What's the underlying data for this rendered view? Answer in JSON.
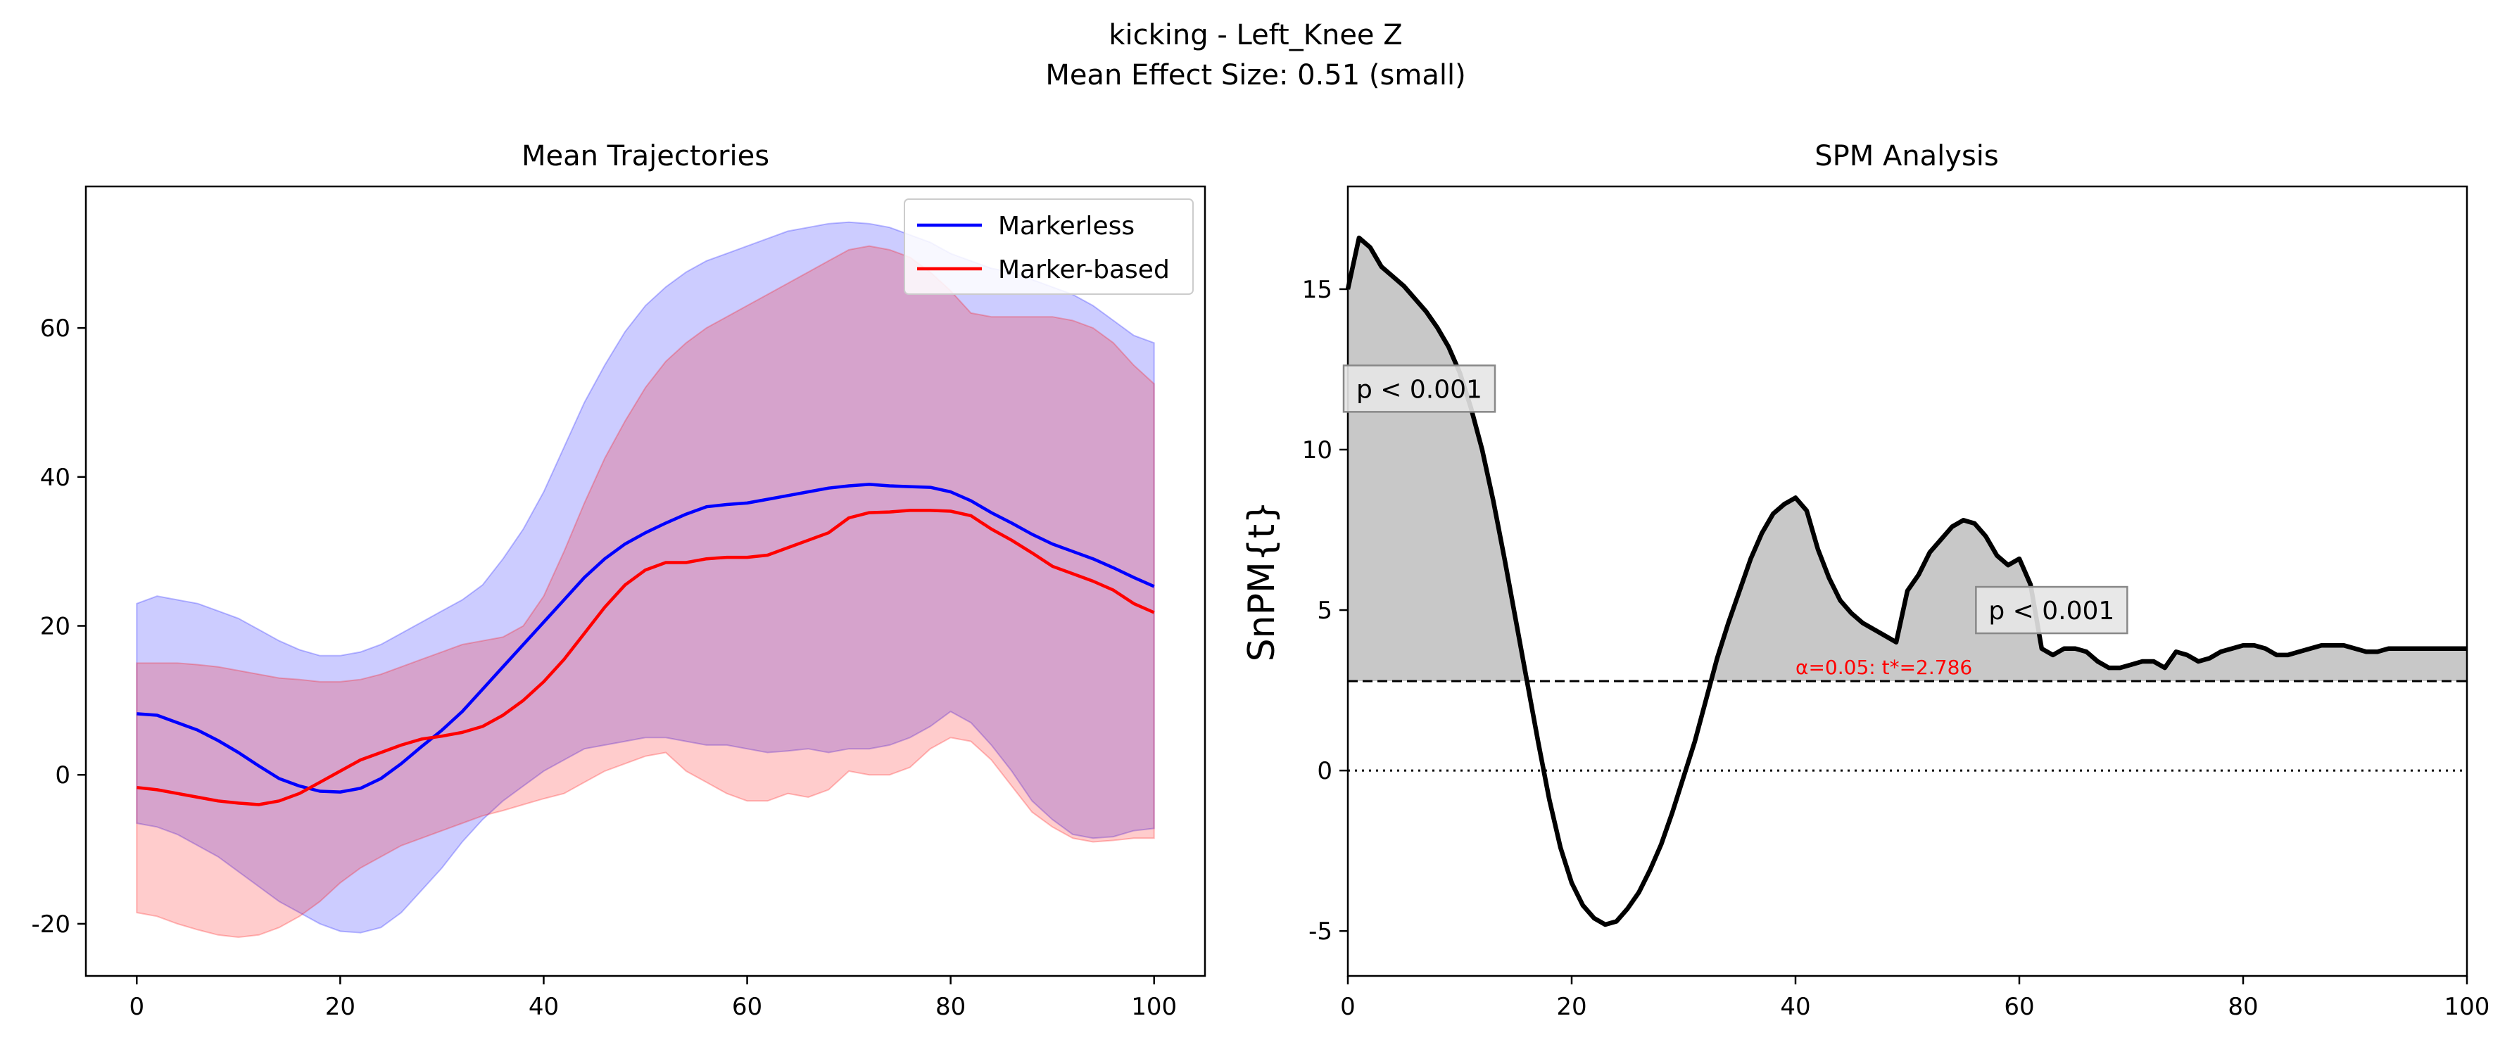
{
  "figure": {
    "title_line1": "kicking - Left_Knee Z",
    "title_line2": "Mean Effect Size: 0.51 (small)"
  },
  "chart_data": [
    {
      "type": "line",
      "title": "Mean Trajectories",
      "xlabel": "",
      "ylabel": "",
      "xlim": [
        -5,
        105
      ],
      "ylim": [
        -27,
        79
      ],
      "xticks": [
        0,
        20,
        40,
        60,
        80,
        100
      ],
      "yticks": [
        -20,
        0,
        20,
        40,
        60
      ],
      "legend_position": "top-right",
      "grid": false,
      "series": [
        {
          "name": "Markerless",
          "color": "#0000ff",
          "x": [
            0,
            2,
            4,
            6,
            8,
            10,
            12,
            14,
            16,
            18,
            20,
            22,
            24,
            26,
            28,
            30,
            32,
            34,
            36,
            38,
            40,
            42,
            44,
            46,
            48,
            50,
            52,
            54,
            56,
            58,
            60,
            62,
            64,
            66,
            68,
            70,
            72,
            74,
            76,
            78,
            80,
            82,
            84,
            86,
            88,
            90,
            92,
            94,
            96,
            98,
            100
          ],
          "values": [
            8.2,
            8.0,
            7.0,
            6.0,
            4.6,
            3.0,
            1.2,
            -0.5,
            -1.5,
            -2.2,
            -2.3,
            -1.8,
            -0.5,
            1.5,
            3.8,
            6.0,
            8.5,
            11.5,
            14.5,
            17.5,
            20.5,
            23.5,
            26.5,
            29.0,
            31.0,
            32.5,
            33.8,
            35.0,
            36.0,
            36.3,
            36.5,
            37.0,
            37.5,
            38.0,
            38.5,
            38.8,
            39.0,
            38.8,
            38.7,
            38.6,
            38.0,
            36.8,
            35.2,
            33.8,
            32.3,
            31.0,
            30.0,
            29.0,
            27.8,
            26.5,
            25.3
          ],
          "band_upper": [
            23.0,
            24.0,
            23.5,
            23.0,
            22.0,
            21.0,
            19.5,
            18.0,
            16.8,
            16.0,
            16.0,
            16.5,
            17.5,
            19.0,
            20.5,
            22.0,
            23.5,
            25.5,
            29.0,
            33.0,
            38.0,
            44.0,
            50.0,
            55.0,
            59.5,
            63.0,
            65.5,
            67.5,
            69.0,
            70.0,
            71.0,
            72.0,
            73.0,
            73.5,
            74.0,
            74.2,
            74.0,
            73.5,
            72.5,
            71.5,
            70.0,
            69.0,
            68.0,
            67.5,
            66.5,
            65.5,
            64.5,
            63.0,
            61.0,
            59.0,
            58.0
          ],
          "band_lower": [
            -6.5,
            -7.0,
            -8.0,
            -9.5,
            -11.0,
            -13.0,
            -15.0,
            -17.0,
            -18.5,
            -20.0,
            -21.0,
            -21.2,
            -20.5,
            -18.5,
            -15.5,
            -12.5,
            -9.0,
            -6.0,
            -3.5,
            -1.5,
            0.5,
            2.0,
            3.5,
            4.0,
            4.5,
            5.0,
            5.0,
            4.5,
            4.0,
            4.0,
            3.5,
            3.0,
            3.2,
            3.5,
            3.0,
            3.5,
            3.5,
            4.0,
            5.0,
            6.5,
            8.5,
            7.0,
            4.0,
            0.5,
            -3.5,
            -6.0,
            -8.0,
            -8.5,
            -8.3,
            -7.5,
            -7.2
          ]
        },
        {
          "name": "Marker-based",
          "color": "#ff0000",
          "x": [
            0,
            2,
            4,
            6,
            8,
            10,
            12,
            14,
            16,
            18,
            20,
            22,
            24,
            26,
            28,
            30,
            32,
            34,
            36,
            38,
            40,
            42,
            44,
            46,
            48,
            50,
            52,
            54,
            56,
            58,
            60,
            62,
            64,
            66,
            68,
            70,
            72,
            74,
            76,
            78,
            80,
            82,
            84,
            86,
            88,
            90,
            92,
            94,
            96,
            98,
            100
          ],
          "values": [
            -1.7,
            -2.0,
            -2.5,
            -3.0,
            -3.5,
            -3.8,
            -4.0,
            -3.5,
            -2.5,
            -1.0,
            0.5,
            2.0,
            3.0,
            4.0,
            4.8,
            5.2,
            5.7,
            6.5,
            8.0,
            10.0,
            12.5,
            15.5,
            19.0,
            22.5,
            25.5,
            27.5,
            28.5,
            28.5,
            29.0,
            29.2,
            29.2,
            29.5,
            30.5,
            31.5,
            32.5,
            34.5,
            35.2,
            35.3,
            35.5,
            35.5,
            35.4,
            34.8,
            33.0,
            31.5,
            29.8,
            28.0,
            27.0,
            26.0,
            24.8,
            23.0,
            21.8
          ],
          "band_upper": [
            15.0,
            15.0,
            15.0,
            14.8,
            14.5,
            14.0,
            13.5,
            13.0,
            12.8,
            12.5,
            12.5,
            12.8,
            13.5,
            14.5,
            15.5,
            16.5,
            17.5,
            18.0,
            18.5,
            20.0,
            24.0,
            30.0,
            36.5,
            42.5,
            47.5,
            52.0,
            55.5,
            58.0,
            60.0,
            61.5,
            63.0,
            64.5,
            66.0,
            67.5,
            69.0,
            70.5,
            71.0,
            70.5,
            69.5,
            67.5,
            65.0,
            62.0,
            61.5,
            61.5,
            61.5,
            61.5,
            61.0,
            60.0,
            58.0,
            55.0,
            52.5
          ],
          "band_lower": [
            -18.5,
            -19.0,
            -20.0,
            -20.8,
            -21.5,
            -21.8,
            -21.5,
            -20.5,
            -19.0,
            -17.0,
            -14.5,
            -12.5,
            -11.0,
            -9.5,
            -8.5,
            -7.5,
            -6.5,
            -5.5,
            -4.8,
            -4.0,
            -3.2,
            -2.5,
            -1.0,
            0.5,
            1.5,
            2.5,
            3.0,
            0.5,
            -1.0,
            -2.5,
            -3.5,
            -3.5,
            -2.5,
            -3.0,
            -2.0,
            0.5,
            0.0,
            0.0,
            1.0,
            3.5,
            5.0,
            4.5,
            2.0,
            -1.5,
            -5.0,
            -7.0,
            -8.5,
            -9.0,
            -8.8,
            -8.5,
            -8.5
          ]
        }
      ]
    },
    {
      "type": "line",
      "title": "SPM Analysis",
      "xlabel": "",
      "ylabel": "SnPM{t}",
      "xlim": [
        0,
        100
      ],
      "ylim": [
        -6.4,
        18.2
      ],
      "xticks": [
        0,
        20,
        40,
        60,
        80,
        100
      ],
      "yticks": [
        -5,
        0,
        5,
        10,
        15
      ],
      "grid": false,
      "threshold": 2.786,
      "threshold_label": "α=0.05:  t*=2.786",
      "annotations": [
        {
          "text": "p < 0.001",
          "x": 0,
          "y": 11.9
        },
        {
          "text": "p < 0.001",
          "x": 56.5,
          "y": 5.0
        }
      ],
      "series": [
        {
          "name": "",
          "color": "#000000",
          "x": [
            0,
            1,
            2,
            3,
            4,
            5,
            6,
            7,
            8,
            9,
            10,
            11,
            12,
            13,
            14,
            15,
            16,
            17,
            18,
            19,
            20,
            21,
            22,
            23,
            24,
            25,
            26,
            27,
            28,
            29,
            30,
            31,
            32,
            33,
            34,
            35,
            36,
            37,
            38,
            39,
            40,
            41,
            42,
            43,
            44,
            45,
            46,
            47,
            48,
            49,
            50,
            51,
            52,
            53,
            54,
            55,
            56,
            57,
            58,
            59,
            60,
            61,
            62,
            63,
            64,
            65,
            66,
            67,
            68,
            69,
            70,
            71,
            72,
            73,
            74,
            75,
            76,
            77,
            78,
            79,
            80,
            81,
            82,
            83,
            84,
            85,
            86,
            87,
            88,
            89,
            90,
            91,
            92,
            93,
            94,
            95,
            96,
            97,
            98,
            99,
            100
          ],
          "values": [
            15.0,
            16.6,
            16.3,
            15.7,
            15.4,
            15.1,
            14.7,
            14.3,
            13.8,
            13.2,
            12.4,
            11.3,
            10.0,
            8.4,
            6.6,
            4.7,
            2.8,
            0.9,
            -0.9,
            -2.4,
            -3.5,
            -4.2,
            -4.6,
            -4.8,
            -4.7,
            -4.3,
            -3.8,
            -3.1,
            -2.3,
            -1.3,
            -0.2,
            0.9,
            2.2,
            3.5,
            4.6,
            5.6,
            6.6,
            7.4,
            8.0,
            8.3,
            8.5,
            8.1,
            6.9,
            6.0,
            5.3,
            4.9,
            4.6,
            4.4,
            4.2,
            4.0,
            5.6,
            6.1,
            6.8,
            7.2,
            7.6,
            7.8,
            7.7,
            7.3,
            6.7,
            6.4,
            6.6,
            5.8,
            3.8,
            3.6,
            3.8,
            3.8,
            3.7,
            3.4,
            3.2,
            3.2,
            3.3,
            3.4,
            3.4,
            3.2,
            3.7,
            3.6,
            3.4,
            3.5,
            3.7,
            3.8,
            3.9,
            3.9,
            3.8,
            3.6,
            3.6,
            3.7,
            3.8,
            3.9,
            3.9,
            3.9,
            3.8,
            3.7,
            3.7,
            3.8,
            3.8,
            3.8,
            3.8,
            3.8,
            3.8,
            3.8,
            3.8
          ]
        }
      ]
    }
  ]
}
